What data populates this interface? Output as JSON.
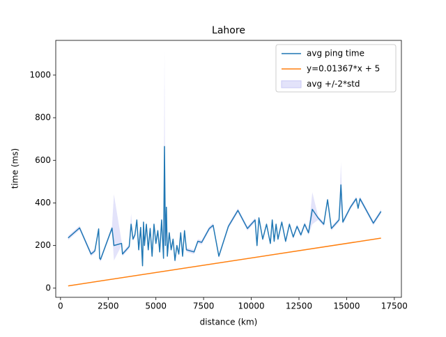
{
  "chart_data": {
    "type": "line",
    "title": "Lahore",
    "xlabel": "distance (km)",
    "ylabel": "time (ms)",
    "xlim": [
      -250,
      17870
    ],
    "ylim": [
      -43,
      1163
    ],
    "xticks": [
      0,
      2500,
      5000,
      7500,
      10000,
      12500,
      15000,
      17500
    ],
    "yticks": [
      0,
      200,
      400,
      600,
      800,
      1000
    ],
    "legend": "upper right",
    "series": [
      {
        "name": "avg ping time",
        "color": "#1f77b4",
        "x": [
          400,
          1000,
          1600,
          1800,
          2000,
          2050,
          2100,
          2700,
          2800,
          3200,
          3250,
          3600,
          3700,
          3800,
          3900,
          4000,
          4100,
          4200,
          4300,
          4350,
          4400,
          4500,
          4600,
          4700,
          4800,
          4900,
          5000,
          5100,
          5200,
          5300,
          5400,
          5450,
          5500,
          5550,
          5600,
          5700,
          5800,
          5900,
          6000,
          6100,
          6200,
          6300,
          6400,
          6500,
          6600,
          7000,
          7200,
          7400,
          7800,
          8000,
          8300,
          8800,
          9300,
          9800,
          10200,
          10300,
          10400,
          10600,
          10800,
          11000,
          11100,
          11200,
          11300,
          11400,
          11600,
          11800,
          12000,
          12200,
          12400,
          12600,
          12800,
          13000,
          13200,
          13500,
          13800,
          14000,
          14200,
          14400,
          14600,
          14700,
          14800,
          15200,
          15500,
          15600,
          15700,
          16400,
          16800
        ],
        "values": [
          236,
          283,
          160,
          175,
          278,
          140,
          135,
          282,
          200,
          210,
          160,
          195,
          300,
          230,
          250,
          320,
          180,
          285,
          105,
          310,
          200,
          300,
          180,
          280,
          150,
          300,
          210,
          270,
          170,
          320,
          140,
          665,
          200,
          380,
          150,
          260,
          180,
          230,
          130,
          200,
          160,
          260,
          150,
          270,
          180,
          170,
          220,
          215,
          280,
          295,
          150,
          290,
          365,
          280,
          320,
          200,
          330,
          230,
          300,
          210,
          320,
          220,
          300,
          230,
          310,
          220,
          300,
          240,
          290,
          250,
          300,
          260,
          370,
          330,
          300,
          415,
          280,
          300,
          320,
          485,
          310,
          380,
          420,
          375,
          420,
          305,
          360
        ]
      },
      {
        "name": "y=0.01367*x + 5",
        "color": "#ff7f0e",
        "x": [
          400,
          16800
        ],
        "values": [
          10.468,
          234.656
        ]
      }
    ],
    "band": {
      "name": "avg +/-2*std",
      "color": "#c8c8f5",
      "upper": [
        246,
        293,
        170,
        185,
        288,
        150,
        145,
        292,
        440,
        220,
        170,
        205,
        350,
        240,
        260,
        330,
        190,
        295,
        115,
        320,
        210,
        310,
        190,
        290,
        160,
        310,
        220,
        280,
        180,
        330,
        150,
        1110,
        210,
        390,
        160,
        270,
        190,
        240,
        140,
        210,
        170,
        270,
        160,
        280,
        190,
        180,
        230,
        225,
        290,
        305,
        160,
        300,
        375,
        290,
        330,
        210,
        340,
        240,
        310,
        220,
        330,
        230,
        310,
        240,
        320,
        230,
        310,
        250,
        300,
        260,
        310,
        270,
        450,
        340,
        310,
        425,
        290,
        310,
        330,
        590,
        320,
        390,
        430,
        385,
        430,
        315,
        370
      ],
      "lower": [
        226,
        273,
        150,
        165,
        268,
        130,
        125,
        272,
        130,
        200,
        150,
        185,
        290,
        220,
        240,
        310,
        170,
        275,
        95,
        300,
        190,
        290,
        170,
        270,
        140,
        290,
        200,
        260,
        160,
        310,
        130,
        230,
        190,
        370,
        140,
        250,
        170,
        220,
        120,
        190,
        150,
        250,
        140,
        260,
        170,
        160,
        210,
        205,
        270,
        285,
        140,
        280,
        355,
        270,
        310,
        190,
        320,
        220,
        290,
        200,
        310,
        210,
        290,
        220,
        300,
        210,
        290,
        230,
        280,
        240,
        290,
        250,
        300,
        320,
        290,
        405,
        270,
        290,
        310,
        390,
        300,
        370,
        410,
        365,
        410,
        295,
        350
      ]
    }
  }
}
